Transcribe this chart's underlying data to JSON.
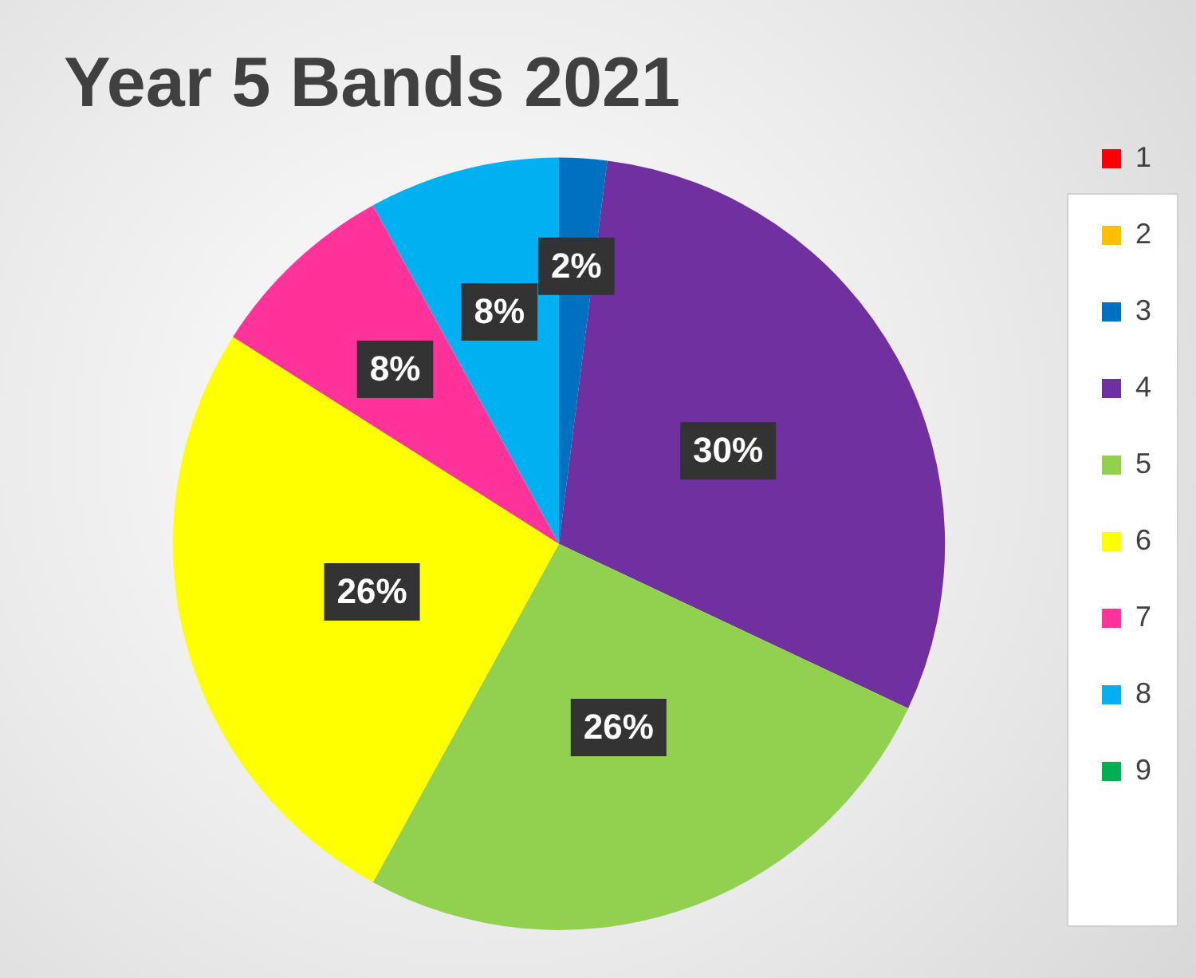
{
  "chart_data": {
    "type": "pie",
    "title": "Year 5 Bands 2021",
    "categories": [
      "1",
      "2",
      "3",
      "4",
      "5",
      "6",
      "7",
      "8",
      "9"
    ],
    "values": [
      0,
      0,
      2,
      30,
      26,
      26,
      8,
      8,
      0
    ],
    "colors": [
      "#ff0000",
      "#ffc000",
      "#0070c0",
      "#7030a0",
      "#92d050",
      "#ffff00",
      "#ff3399",
      "#00b0f0",
      "#00b050"
    ],
    "value_labels": [
      null,
      null,
      "2%",
      "30%",
      "26%",
      "26%",
      "8%",
      "8%",
      null
    ],
    "legend": "right"
  }
}
